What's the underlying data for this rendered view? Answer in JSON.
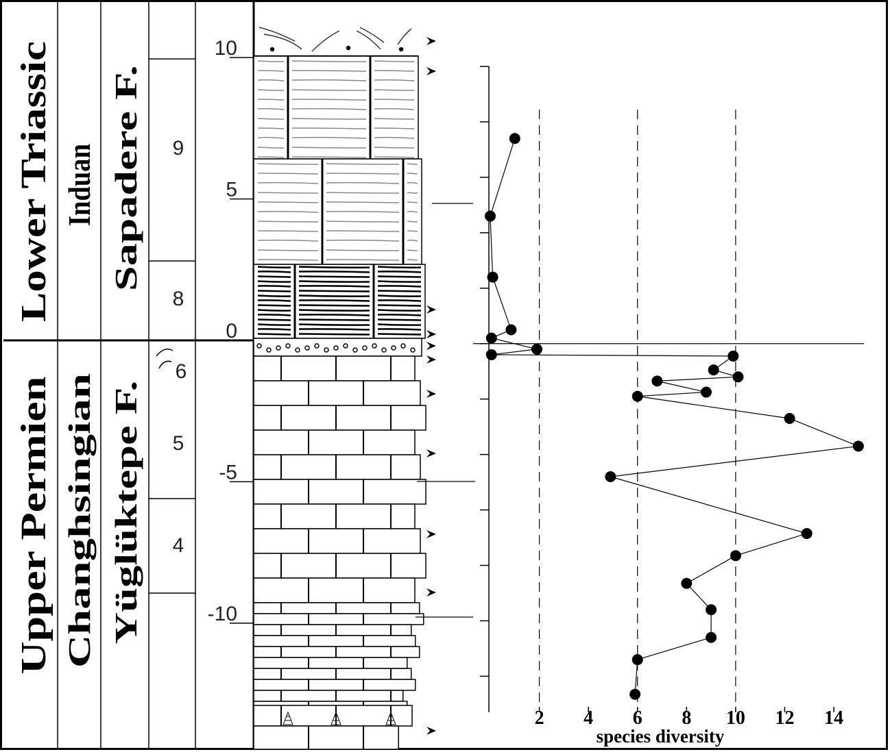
{
  "column": {
    "units": [
      "Lower Triassic",
      "Upper Permien"
    ],
    "stages": [
      "Induan",
      "Changhsingian"
    ],
    "formations": [
      "Sapadere F.",
      "Yüglüktepe F."
    ],
    "beds": [
      "9",
      "8",
      "6",
      "5",
      "4"
    ],
    "depth_ticks": [
      10,
      5,
      0,
      -5,
      -10
    ],
    "depth_lim": [
      -14,
      12
    ]
  },
  "chart_data": {
    "type": "line",
    "x_label": "species diversity",
    "x": [
      1,
      0,
      0.1,
      0.85,
      0.05,
      1.9,
      0.05,
      9.9,
      9.1,
      10.1,
      6.8,
      8.8,
      6,
      12.2,
      15,
      4.9,
      12.9,
      10,
      8,
      9,
      9,
      6,
      5.9
    ],
    "y": [
      7.4,
      4.6,
      2.4,
      0.5,
      0.2,
      -0.2,
      -0.4,
      -0.45,
      -0.95,
      -1.2,
      -1.35,
      -1.75,
      -1.9,
      -2.7,
      -3.7,
      -4.8,
      -6.85,
      -7.65,
      -8.65,
      -9.6,
      -10.6,
      -11.4,
      -12.65
    ],
    "xlim": [
      0,
      15.2
    ],
    "xticks": [
      2,
      4,
      6,
      8,
      10,
      12,
      14
    ],
    "xgrid": [
      2,
      6,
      10
    ],
    "ylim": [
      -13.3,
      10
    ],
    "ytick_marks": [
      10,
      8,
      6,
      4,
      2,
      0,
      -2,
      -4,
      -6,
      -8,
      -10,
      -12
    ],
    "zero_line": 0,
    "color": "#000000"
  }
}
